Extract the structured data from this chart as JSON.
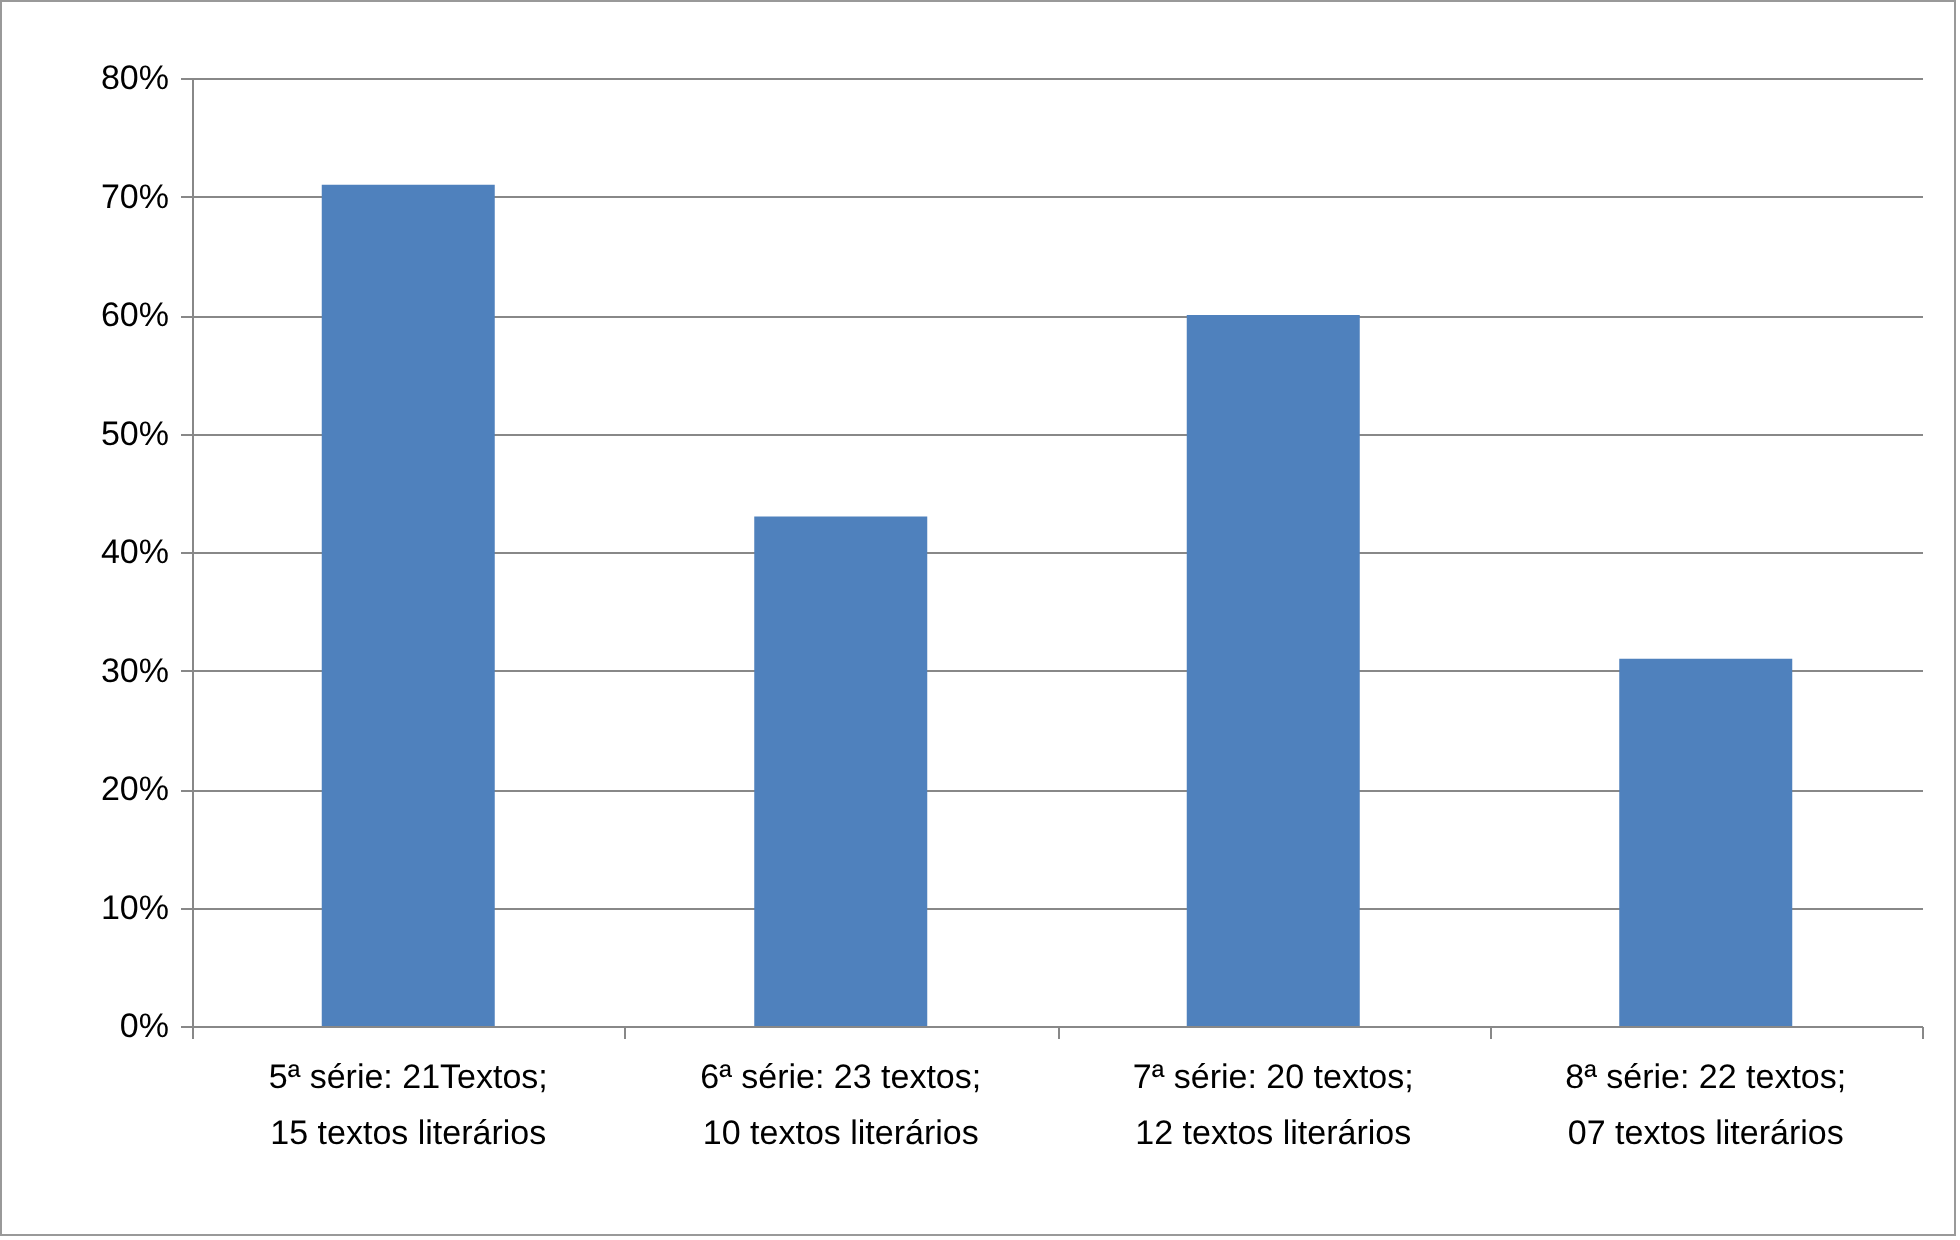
{
  "chart_data": {
    "type": "bar",
    "categories": [
      "5ª série: 21Textos;\n15 textos literários",
      "6ª série: 23 textos;\n10 textos literários",
      "7ª série: 20 textos;\n12 textos literários",
      "8ª série: 22 textos;\n07 textos literários"
    ],
    "values": [
      71,
      43,
      60,
      31
    ],
    "color": "#4f81bd",
    "ylim": [
      0,
      80
    ],
    "yticks": [
      {
        "value": 0,
        "label": "0%"
      },
      {
        "value": 10,
        "label": "10%"
      },
      {
        "value": 20,
        "label": "20%"
      },
      {
        "value": 30,
        "label": "30%"
      },
      {
        "value": 40,
        "label": "40%"
      },
      {
        "value": 50,
        "label": "50%"
      },
      {
        "value": 60,
        "label": "60%"
      },
      {
        "value": 70,
        "label": "70%"
      },
      {
        "value": 80,
        "label": "80%"
      }
    ],
    "grid": "y"
  }
}
